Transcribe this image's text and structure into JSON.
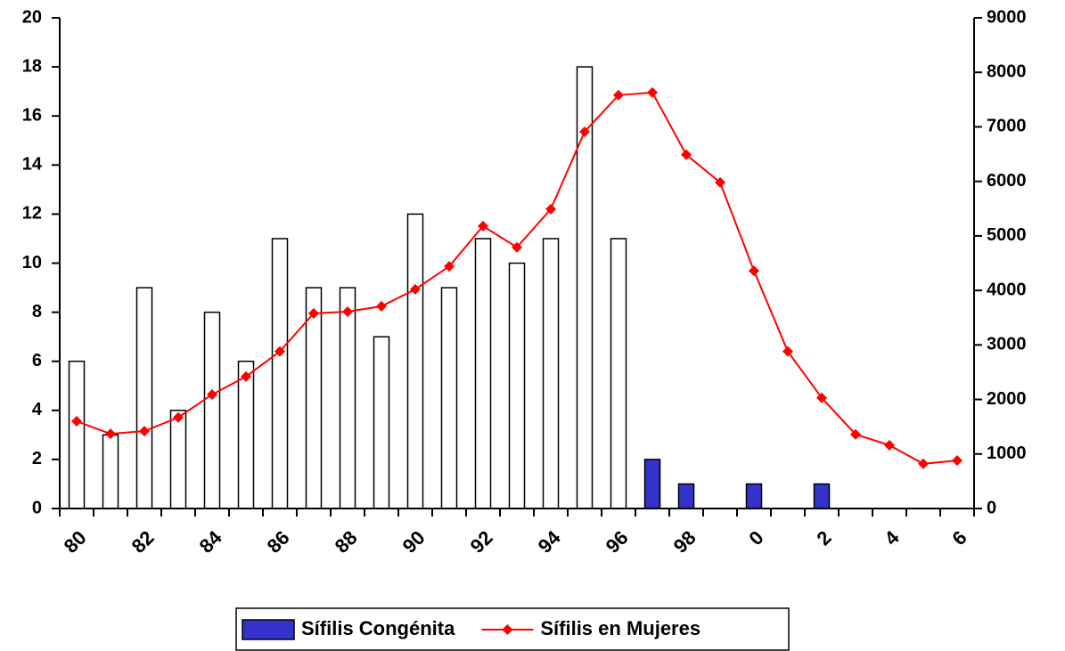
{
  "chart_data": {
    "type": "bar-line",
    "categories": [
      "80",
      null,
      "82",
      null,
      "84",
      null,
      "86",
      null,
      "88",
      null,
      "90",
      null,
      "92",
      null,
      "94",
      null,
      "96",
      null,
      "98",
      null,
      "0",
      null,
      "2",
      null,
      "4",
      null,
      "6"
    ],
    "series": [
      {
        "name": "Sífilis Congénita",
        "type": "bar",
        "axis": "y",
        "color": "#3333cc",
        "colors": [
          "#ffffff",
          "#ffffff",
          "#ffffff",
          "#ffffff",
          "#ffffff",
          "#ffffff",
          "#ffffff",
          "#ffffff",
          "#ffffff",
          "#ffffff",
          "#ffffff",
          "#ffffff",
          "#ffffff",
          "#ffffff",
          "#ffffff",
          "#ffffff",
          "#ffffff",
          "#3333cc",
          "#3333cc",
          "#3333cc",
          "#3333cc",
          "#3333cc",
          "#3333cc",
          "#3333cc",
          "#3333cc",
          "#3333cc",
          "#3333cc"
        ],
        "values": [
          6,
          3,
          9,
          4,
          8,
          6,
          11,
          9,
          9,
          7,
          12,
          9,
          11,
          10,
          11,
          18,
          11,
          2,
          1,
          0,
          1,
          0,
          1,
          0,
          0,
          0,
          0
        ]
      },
      {
        "name": "Sífilis en Mujeres",
        "type": "line",
        "axis": "y2",
        "color": "#ff0000",
        "values": [
          1600,
          1370,
          1420,
          1670,
          2090,
          2420,
          2880,
          3580,
          3610,
          3710,
          4020,
          4440,
          5180,
          4790,
          5490,
          6910,
          7580,
          7630,
          6490,
          5980,
          4360,
          2880,
          2030,
          1360,
          1160,
          820,
          880
        ]
      }
    ],
    "ylim": [
      0,
      20
    ],
    "yticks": [
      0,
      2,
      4,
      6,
      8,
      10,
      12,
      14,
      16,
      18,
      20
    ],
    "y2lim": [
      0,
      9000
    ],
    "y2ticks": [
      0,
      1000,
      2000,
      3000,
      4000,
      5000,
      6000,
      7000,
      8000,
      9000
    ],
    "legend": "bottom"
  }
}
